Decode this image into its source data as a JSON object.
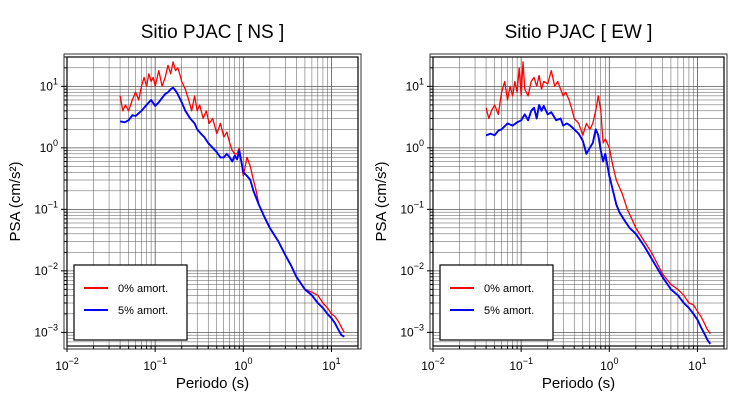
{
  "chart_data": [
    {
      "type": "line",
      "title": "Sitio PJAC [ NS ]",
      "xlabel": "Periodo (s)",
      "ylabel": "PSA (cm/s²)",
      "xscale": "log",
      "yscale": "log",
      "xlim": [
        0.01,
        20
      ],
      "ylim": [
        0.0006,
        30
      ],
      "xticks": [
        {
          "value": 0.01,
          "base": "10",
          "exp": "−2"
        },
        {
          "value": 0.1,
          "base": "10",
          "exp": "−1"
        },
        {
          "value": 1,
          "base": "10",
          "exp": "0"
        },
        {
          "value": 10,
          "base": "10",
          "exp": "1"
        }
      ],
      "yticks": [
        {
          "value": 0.001,
          "base": "10",
          "exp": "−3"
        },
        {
          "value": 0.01,
          "base": "10",
          "exp": "−2"
        },
        {
          "value": 0.1,
          "base": "10",
          "exp": "−1"
        },
        {
          "value": 1,
          "base": "10",
          "exp": "0"
        },
        {
          "value": 10,
          "base": "10",
          "exp": "1"
        }
      ],
      "grid": true,
      "legend": "bottom-left",
      "series": [
        {
          "name": "0% amort.",
          "color": "#ff0000",
          "x": [
            0.04,
            0.043,
            0.046,
            0.05,
            0.055,
            0.06,
            0.065,
            0.07,
            0.075,
            0.08,
            0.085,
            0.09,
            0.095,
            0.1,
            0.11,
            0.12,
            0.13,
            0.14,
            0.15,
            0.16,
            0.17,
            0.18,
            0.19,
            0.2,
            0.22,
            0.24,
            0.26,
            0.28,
            0.3,
            0.32,
            0.35,
            0.38,
            0.41,
            0.45,
            0.5,
            0.55,
            0.6,
            0.65,
            0.7,
            0.75,
            0.8,
            0.85,
            0.9,
            1.0,
            1.1,
            1.2,
            1.3,
            1.4,
            1.5,
            1.7,
            2.0,
            2.5,
            3.0,
            3.5,
            4.0,
            5.0,
            6.0,
            7.0,
            8.0,
            9.0,
            10.0,
            11.0,
            12.0,
            13.0,
            14.0
          ],
          "y": [
            7,
            4,
            5,
            4,
            6,
            8,
            6,
            10,
            14,
            10,
            16,
            12,
            14,
            10,
            18,
            10,
            14,
            22,
            16,
            25,
            18,
            20,
            16,
            12,
            9,
            6,
            4,
            7,
            4,
            5,
            3,
            4,
            2.5,
            3,
            1.7,
            2.5,
            1.5,
            1.8,
            1.2,
            0.9,
            0.8,
            0.8,
            1.0,
            0.35,
            0.7,
            0.5,
            0.3,
            0.2,
            0.12,
            0.08,
            0.05,
            0.03,
            0.018,
            0.012,
            0.008,
            0.005,
            0.0045,
            0.004,
            0.003,
            0.0025,
            0.002,
            0.0018,
            0.0015,
            0.0012,
            0.001
          ]
        },
        {
          "name": "5% amort.",
          "color": "#0000ff",
          "x": [
            0.04,
            0.045,
            0.05,
            0.055,
            0.06,
            0.07,
            0.08,
            0.09,
            0.1,
            0.11,
            0.12,
            0.13,
            0.14,
            0.15,
            0.16,
            0.17,
            0.18,
            0.2,
            0.22,
            0.25,
            0.28,
            0.3,
            0.33,
            0.36,
            0.4,
            0.45,
            0.5,
            0.55,
            0.6,
            0.65,
            0.7,
            0.75,
            0.8,
            0.85,
            0.9,
            1.0,
            1.1,
            1.2,
            1.3,
            1.5,
            1.7,
            2.0,
            2.5,
            3.0,
            3.5,
            4.0,
            5.0,
            6.0,
            7.0,
            8.0,
            9.0,
            10.0,
            11.0,
            12.0,
            13.0,
            14.0
          ],
          "y": [
            2.7,
            2.6,
            2.8,
            3.4,
            3.3,
            4.0,
            5.0,
            6.0,
            4.8,
            5.5,
            6.5,
            7.5,
            8.0,
            9.0,
            9.5,
            8.5,
            7.5,
            5.5,
            4.0,
            3.0,
            2.5,
            2.0,
            1.7,
            1.5,
            1.2,
            1.0,
            0.85,
            0.7,
            0.7,
            0.8,
            0.7,
            0.6,
            0.75,
            0.65,
            0.9,
            0.4,
            0.35,
            0.3,
            0.2,
            0.12,
            0.08,
            0.05,
            0.03,
            0.018,
            0.012,
            0.008,
            0.005,
            0.004,
            0.003,
            0.0025,
            0.002,
            0.0017,
            0.0014,
            0.0011,
            0.0009,
            0.00085
          ]
        }
      ]
    },
    {
      "type": "line",
      "title": "Sitio PJAC [ EW ]",
      "xlabel": "Periodo (s)",
      "ylabel": "PSA (cm/s²)",
      "xscale": "log",
      "yscale": "log",
      "xlim": [
        0.01,
        20
      ],
      "ylim": [
        0.0006,
        30
      ],
      "xticks": [
        {
          "value": 0.01,
          "base": "10",
          "exp": "−2"
        },
        {
          "value": 0.1,
          "base": "10",
          "exp": "−1"
        },
        {
          "value": 1,
          "base": "10",
          "exp": "0"
        },
        {
          "value": 10,
          "base": "10",
          "exp": "1"
        }
      ],
      "yticks": [
        {
          "value": 0.001,
          "base": "10",
          "exp": "−3"
        },
        {
          "value": 0.01,
          "base": "10",
          "exp": "−2"
        },
        {
          "value": 0.1,
          "base": "10",
          "exp": "−1"
        },
        {
          "value": 1,
          "base": "10",
          "exp": "0"
        },
        {
          "value": 10,
          "base": "10",
          "exp": "1"
        }
      ],
      "grid": true,
      "legend": "bottom-left",
      "series": [
        {
          "name": "0% amort.",
          "color": "#ff0000",
          "x": [
            0.04,
            0.043,
            0.046,
            0.05,
            0.055,
            0.06,
            0.065,
            0.07,
            0.075,
            0.08,
            0.085,
            0.09,
            0.095,
            0.1,
            0.105,
            0.11,
            0.12,
            0.13,
            0.14,
            0.15,
            0.16,
            0.17,
            0.18,
            0.2,
            0.22,
            0.24,
            0.26,
            0.28,
            0.3,
            0.32,
            0.35,
            0.38,
            0.4,
            0.45,
            0.5,
            0.55,
            0.6,
            0.65,
            0.7,
            0.75,
            0.8,
            0.85,
            0.9,
            1.0,
            1.1,
            1.2,
            1.4,
            1.6,
            1.8,
            2.0,
            2.5,
            3.0,
            3.5,
            4.0,
            5.0,
            6.0,
            7.0,
            8.0,
            9.0,
            10.0,
            11.0,
            12.0,
            13.0,
            14.0
          ],
          "y": [
            4.5,
            3.0,
            4.0,
            5.0,
            3.5,
            8.0,
            12.0,
            6.0,
            10.0,
            7.0,
            12.0,
            8.0,
            20.0,
            7.0,
            25.0,
            9.0,
            7.0,
            12.0,
            14.0,
            10.0,
            15.0,
            9.0,
            12.0,
            11.0,
            18.0,
            10.0,
            12.0,
            9.0,
            7.0,
            8.0,
            6.0,
            4.0,
            3.0,
            2.5,
            1.6,
            2.5,
            2.0,
            2.5,
            4.0,
            7.0,
            4.0,
            1.2,
            1.4,
            1.0,
            0.5,
            0.3,
            0.18,
            0.1,
            0.07,
            0.05,
            0.03,
            0.02,
            0.013,
            0.009,
            0.006,
            0.005,
            0.004,
            0.003,
            0.0028,
            0.0022,
            0.0018,
            0.0014,
            0.0011,
            0.00095
          ]
        },
        {
          "name": "5% amort.",
          "color": "#0000ff",
          "x": [
            0.04,
            0.045,
            0.05,
            0.055,
            0.06,
            0.07,
            0.08,
            0.09,
            0.1,
            0.11,
            0.12,
            0.13,
            0.14,
            0.15,
            0.16,
            0.17,
            0.18,
            0.2,
            0.22,
            0.25,
            0.28,
            0.3,
            0.33,
            0.36,
            0.4,
            0.45,
            0.5,
            0.55,
            0.6,
            0.65,
            0.7,
            0.75,
            0.8,
            0.85,
            0.9,
            1.0,
            1.1,
            1.2,
            1.3,
            1.5,
            1.7,
            2.0,
            2.5,
            3.0,
            3.5,
            4.0,
            5.0,
            6.0,
            7.0,
            8.0,
            9.0,
            10.0,
            11.0,
            12.0,
            13.0,
            14.0
          ],
          "y": [
            1.6,
            1.7,
            1.6,
            1.9,
            2.0,
            2.5,
            2.3,
            2.6,
            2.8,
            3.5,
            2.8,
            4.0,
            4.5,
            3.0,
            5.0,
            4.0,
            4.8,
            3.5,
            3.8,
            2.8,
            3.0,
            2.3,
            2.5,
            2.3,
            2.0,
            1.7,
            1.3,
            0.8,
            1.0,
            1.2,
            2.0,
            1.6,
            0.9,
            0.6,
            0.8,
            0.35,
            0.2,
            0.12,
            0.09,
            0.065,
            0.05,
            0.04,
            0.025,
            0.016,
            0.011,
            0.008,
            0.005,
            0.004,
            0.003,
            0.0025,
            0.002,
            0.0016,
            0.0012,
            0.00095,
            0.00075,
            0.00065
          ]
        }
      ]
    }
  ]
}
